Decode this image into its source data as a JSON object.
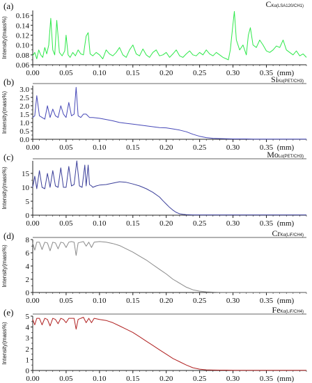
{
  "chart_data": [
    {
      "type": "line",
      "panel_label": "(a)",
      "element": "C",
      "line_sub": "Kα(LSA120/CH1)",
      "ylabel": "Intensity(mass%)",
      "xlabel": "(mm)",
      "color": "#2ee84a",
      "ylim": [
        0.06,
        0.17
      ],
      "yticks": [
        "0.06",
        "0.08",
        "0.10",
        "0.12",
        "0.14",
        "0.16"
      ],
      "ytick_values": [
        0.06,
        0.08,
        0.1,
        0.12,
        0.14,
        0.16
      ],
      "xlim": [
        0,
        0.41
      ],
      "xticks": [
        "0.00",
        "0.05",
        "0.10",
        "0.15",
        "0.20",
        "0.25",
        "0.30",
        "0.35"
      ],
      "xtick_values": [
        0,
        0.05,
        0.1,
        0.15,
        0.2,
        0.25,
        0.3,
        0.35
      ],
      "x": [
        0.0,
        0.003,
        0.006,
        0.009,
        0.012,
        0.015,
        0.018,
        0.021,
        0.024,
        0.027,
        0.03,
        0.033,
        0.036,
        0.04,
        0.044,
        0.048,
        0.05,
        0.053,
        0.056,
        0.06,
        0.064,
        0.068,
        0.072,
        0.076,
        0.08,
        0.083,
        0.086,
        0.09,
        0.095,
        0.1,
        0.105,
        0.11,
        0.115,
        0.12,
        0.125,
        0.13,
        0.135,
        0.14,
        0.145,
        0.15,
        0.155,
        0.16,
        0.165,
        0.17,
        0.175,
        0.18,
        0.185,
        0.19,
        0.195,
        0.2,
        0.205,
        0.21,
        0.215,
        0.22,
        0.225,
        0.23,
        0.235,
        0.24,
        0.245,
        0.25,
        0.255,
        0.26,
        0.265,
        0.27,
        0.275,
        0.28,
        0.285,
        0.29,
        0.293,
        0.296,
        0.299,
        0.302,
        0.305,
        0.31,
        0.315,
        0.32,
        0.323,
        0.326,
        0.33,
        0.335,
        0.34,
        0.345,
        0.35,
        0.355,
        0.36,
        0.365,
        0.37,
        0.375,
        0.38,
        0.385,
        0.39,
        0.395,
        0.4,
        0.405,
        0.41
      ],
      "values": [
        0.078,
        0.085,
        0.072,
        0.09,
        0.08,
        0.075,
        0.095,
        0.082,
        0.1,
        0.154,
        0.09,
        0.08,
        0.15,
        0.085,
        0.078,
        0.088,
        0.12,
        0.08,
        0.075,
        0.085,
        0.078,
        0.09,
        0.082,
        0.08,
        0.118,
        0.125,
        0.082,
        0.078,
        0.085,
        0.08,
        0.072,
        0.09,
        0.082,
        0.078,
        0.085,
        0.095,
        0.08,
        0.075,
        0.09,
        0.1,
        0.082,
        0.078,
        0.092,
        0.08,
        0.075,
        0.085,
        0.09,
        0.078,
        0.08,
        0.085,
        0.075,
        0.082,
        0.09,
        0.078,
        0.075,
        0.082,
        0.088,
        0.08,
        0.078,
        0.085,
        0.08,
        0.09,
        0.082,
        0.078,
        0.085,
        0.08,
        0.075,
        0.072,
        0.07,
        0.09,
        0.13,
        0.168,
        0.11,
        0.09,
        0.1,
        0.08,
        0.12,
        0.135,
        0.1,
        0.095,
        0.11,
        0.1,
        0.088,
        0.085,
        0.09,
        0.098,
        0.095,
        0.11,
        0.09,
        0.085,
        0.08,
        0.088,
        0.078,
        0.082,
        0.075
      ]
    },
    {
      "type": "line",
      "panel_label": "(b)",
      "element": "Si",
      "line_sub": "Kα(PET/CH3)",
      "ylabel": "Intensity(mass%)",
      "xlabel": "(mm)",
      "color": "#4648b8",
      "ylim": [
        0,
        3.2
      ],
      "yticks": [
        "0.0",
        "0.5",
        "1.0",
        "1.5",
        "2.0",
        "2.5",
        "3.0"
      ],
      "ytick_values": [
        0,
        0.5,
        1.0,
        1.5,
        2.0,
        2.5,
        3.0
      ],
      "xlim": [
        0,
        0.41
      ],
      "xticks": [
        "0.00",
        "0.05",
        "0.10",
        "0.15",
        "0.20",
        "0.25",
        "0.30",
        "0.35"
      ],
      "xtick_values": [
        0,
        0.05,
        0.1,
        0.15,
        0.2,
        0.25,
        0.3,
        0.35
      ],
      "x": [
        0.0,
        0.003,
        0.006,
        0.01,
        0.014,
        0.018,
        0.022,
        0.026,
        0.03,
        0.034,
        0.038,
        0.042,
        0.046,
        0.05,
        0.054,
        0.058,
        0.062,
        0.065,
        0.068,
        0.072,
        0.076,
        0.08,
        0.085,
        0.09,
        0.1,
        0.11,
        0.12,
        0.13,
        0.14,
        0.15,
        0.16,
        0.17,
        0.18,
        0.19,
        0.2,
        0.21,
        0.22,
        0.23,
        0.24,
        0.25,
        0.26,
        0.27,
        0.28,
        0.29,
        0.3,
        0.31,
        0.32,
        0.33,
        0.34,
        0.35,
        0.36,
        0.37,
        0.38,
        0.39,
        0.4,
        0.41
      ],
      "values": [
        1.3,
        1.4,
        2.6,
        1.4,
        1.3,
        1.2,
        2.0,
        1.3,
        1.8,
        1.4,
        1.3,
        2.0,
        1.5,
        1.3,
        2.2,
        1.4,
        1.5,
        3.1,
        1.4,
        1.3,
        1.5,
        1.5,
        1.3,
        1.3,
        1.25,
        1.18,
        1.1,
        1.0,
        0.95,
        0.9,
        0.85,
        0.8,
        0.75,
        0.7,
        0.68,
        0.62,
        0.55,
        0.45,
        0.3,
        0.18,
        0.1,
        0.06,
        0.04,
        0.03,
        0.02,
        0.02,
        0.02,
        0.01,
        0.01,
        0.01,
        0.01,
        0.01,
        0.01,
        0.01,
        0.01,
        0.01
      ]
    },
    {
      "type": "line",
      "panel_label": "(c)",
      "element": "Mo",
      "line_sub": "Lα(PET/CH3)",
      "ylabel": "Intensity(mass%)",
      "xlabel": "(mm)",
      "color": "#3b3f9a",
      "ylim": [
        0,
        19.5
      ],
      "yticks": [
        "0",
        "5",
        "10",
        "15"
      ],
      "ytick_values": [
        0,
        5,
        10,
        15
      ],
      "xlim": [
        0,
        0.41
      ],
      "xticks": [
        "0.00",
        "0.05",
        "0.10",
        "0.15",
        "0.20",
        "0.25",
        "0.30",
        "0.35"
      ],
      "xtick_values": [
        0,
        0.05,
        0.1,
        0.15,
        0.2,
        0.25,
        0.3,
        0.35
      ],
      "x": [
        0.0,
        0.003,
        0.006,
        0.01,
        0.014,
        0.018,
        0.022,
        0.026,
        0.03,
        0.034,
        0.038,
        0.042,
        0.046,
        0.05,
        0.054,
        0.058,
        0.062,
        0.066,
        0.07,
        0.074,
        0.078,
        0.08,
        0.083,
        0.085,
        0.088,
        0.09,
        0.095,
        0.1,
        0.11,
        0.12,
        0.13,
        0.14,
        0.15,
        0.16,
        0.17,
        0.18,
        0.19,
        0.195,
        0.2,
        0.205,
        0.21,
        0.215,
        0.22,
        0.225,
        0.23,
        0.24,
        0.25,
        0.26,
        0.27,
        0.28,
        0.29,
        0.3,
        0.32,
        0.34,
        0.36,
        0.38,
        0.4,
        0.41
      ],
      "values": [
        10.0,
        14.0,
        9.5,
        16.0,
        10.0,
        9.5,
        15.0,
        10.0,
        16.0,
        10.5,
        10.0,
        17.0,
        10.0,
        10.0,
        17.5,
        10.5,
        11.0,
        19.5,
        10.5,
        10.0,
        18.0,
        10.5,
        18.0,
        11.0,
        10.5,
        10.0,
        10.5,
        10.8,
        11.0,
        11.5,
        12.0,
        11.8,
        11.2,
        10.5,
        9.5,
        8.2,
        6.5,
        5.2,
        4.0,
        2.8,
        1.8,
        1.0,
        0.5,
        0.3,
        0.2,
        0.1,
        0.1,
        0.1,
        0.1,
        0.1,
        0.1,
        0.1,
        0.1,
        0.1,
        0.1,
        0.1,
        0.1,
        0.1
      ]
    },
    {
      "type": "line",
      "panel_label": "(d)",
      "element": "Cr",
      "line_sub": "Kα(LiF/CH4)",
      "ylabel": "Intensity(mass%)",
      "xlabel": "(mm)",
      "color": "#8a8a8a",
      "ylim": [
        0,
        8
      ],
      "yticks": [
        "0",
        "2",
        "4",
        "6",
        "8"
      ],
      "ytick_values": [
        0,
        2,
        4,
        6,
        8
      ],
      "xlim": [
        0,
        0.41
      ],
      "xticks": [
        "0.00",
        "0.05",
        "0.10",
        "0.15",
        "0.20",
        "0.25",
        "0.30",
        "0.35"
      ],
      "xtick_values": [
        0,
        0.05,
        0.1,
        0.15,
        0.2,
        0.25,
        0.3,
        0.35
      ],
      "x": [
        0.0,
        0.003,
        0.006,
        0.01,
        0.014,
        0.018,
        0.022,
        0.026,
        0.03,
        0.034,
        0.038,
        0.042,
        0.046,
        0.05,
        0.054,
        0.058,
        0.062,
        0.065,
        0.068,
        0.072,
        0.076,
        0.08,
        0.084,
        0.088,
        0.092,
        0.1,
        0.11,
        0.12,
        0.13,
        0.14,
        0.15,
        0.16,
        0.17,
        0.18,
        0.19,
        0.2,
        0.21,
        0.22,
        0.23,
        0.24,
        0.25,
        0.26,
        0.27,
        0.28,
        0.29,
        0.3,
        0.32,
        0.34,
        0.36,
        0.38,
        0.4,
        0.41
      ],
      "values": [
        7.5,
        6.4,
        7.6,
        7.6,
        6.5,
        7.6,
        7.5,
        6.3,
        7.6,
        7.5,
        6.6,
        7.6,
        7.5,
        6.8,
        7.6,
        7.7,
        7.6,
        5.6,
        7.5,
        7.6,
        7.7,
        7.0,
        7.6,
        6.8,
        7.6,
        7.7,
        7.6,
        7.4,
        7.1,
        6.6,
        6.1,
        5.5,
        4.9,
        4.2,
        3.5,
        2.8,
        2.0,
        1.4,
        0.8,
        0.4,
        0.2,
        0.1,
        0.05,
        0.03,
        0.02,
        0.02,
        0.02,
        0.02,
        0.02,
        0.02,
        0.02,
        0.02
      ]
    },
    {
      "type": "line",
      "panel_label": "(e)",
      "element": "Fe",
      "line_sub": "Kα(LiF/CH4)",
      "ylabel": "Intensity(mass%)",
      "xlabel": "(mm)",
      "color": "#b02020",
      "ylim": [
        0,
        5
      ],
      "yticks": [
        "0",
        "1",
        "2",
        "3",
        "4",
        "5"
      ],
      "ytick_values": [
        0,
        1,
        2,
        3,
        4,
        5
      ],
      "xlim": [
        0,
        0.41
      ],
      "xticks": [
        "0.00",
        "0.05",
        "0.10",
        "0.15",
        "0.20",
        "0.25",
        "0.30",
        "0.35"
      ],
      "xtick_values": [
        0,
        0.05,
        0.1,
        0.15,
        0.2,
        0.25,
        0.3,
        0.35
      ],
      "x": [
        0.0,
        0.003,
        0.006,
        0.01,
        0.014,
        0.018,
        0.022,
        0.026,
        0.03,
        0.034,
        0.038,
        0.042,
        0.046,
        0.05,
        0.054,
        0.058,
        0.062,
        0.065,
        0.068,
        0.072,
        0.076,
        0.08,
        0.084,
        0.088,
        0.092,
        0.1,
        0.11,
        0.12,
        0.13,
        0.14,
        0.15,
        0.16,
        0.17,
        0.18,
        0.19,
        0.2,
        0.21,
        0.22,
        0.23,
        0.24,
        0.25,
        0.26,
        0.27,
        0.28,
        0.29,
        0.3,
        0.32,
        0.34,
        0.36,
        0.38,
        0.4,
        0.41
      ],
      "values": [
        4.7,
        4.2,
        4.8,
        4.8,
        4.2,
        4.8,
        4.7,
        4.1,
        4.8,
        4.7,
        4.3,
        4.8,
        4.7,
        4.4,
        4.8,
        4.8,
        4.8,
        3.8,
        4.7,
        4.8,
        4.9,
        4.4,
        4.8,
        4.4,
        4.8,
        4.7,
        4.6,
        4.4,
        4.1,
        3.8,
        3.5,
        3.1,
        2.7,
        2.3,
        1.9,
        1.5,
        1.1,
        0.8,
        0.5,
        0.25,
        0.12,
        0.06,
        0.04,
        0.03,
        0.03,
        0.02,
        0.02,
        0.02,
        0.02,
        0.02,
        0.02,
        0.02
      ]
    }
  ]
}
